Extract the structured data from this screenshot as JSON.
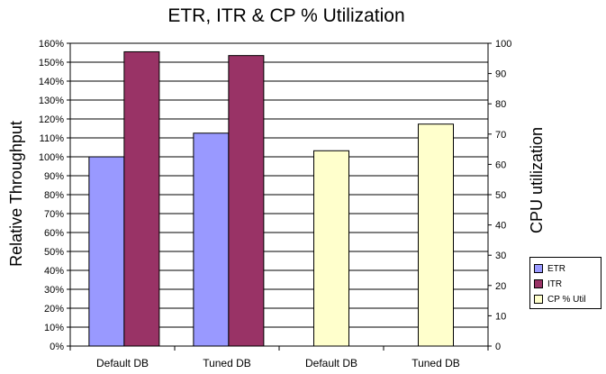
{
  "chart_data": {
    "type": "bar",
    "title": "ETR, ITR & CP % Utilization",
    "ylabel": "Relative Throughput",
    "y2label": "CPU utilization",
    "categories": [
      "Default DB",
      "Tuned DB",
      "Default DB",
      "Tuned DB"
    ],
    "ylim": [
      0,
      160
    ],
    "y2lim": [
      0,
      100
    ],
    "yticks": [
      "0%",
      "10%",
      "20%",
      "30%",
      "40%",
      "50%",
      "60%",
      "70%",
      "80%",
      "90%",
      "100%",
      "110%",
      "120%",
      "130%",
      "140%",
      "150%",
      "160%"
    ],
    "y2ticks": [
      "0",
      "10",
      "20",
      "30",
      "40",
      "50",
      "60",
      "70",
      "80",
      "90",
      "100"
    ],
    "grid": true,
    "legend": "right",
    "series": [
      {
        "name": "ETR",
        "axis": "left",
        "color": "#9999ff",
        "values": [
          100,
          112.5,
          null,
          null
        ]
      },
      {
        "name": "ITR",
        "axis": "left",
        "color": "#993366",
        "values": [
          155.5,
          153.5,
          null,
          null
        ]
      },
      {
        "name": "CP % Util",
        "axis": "right",
        "color": "#ffffcc",
        "values": [
          null,
          null,
          64.5,
          73.3
        ]
      }
    ]
  }
}
